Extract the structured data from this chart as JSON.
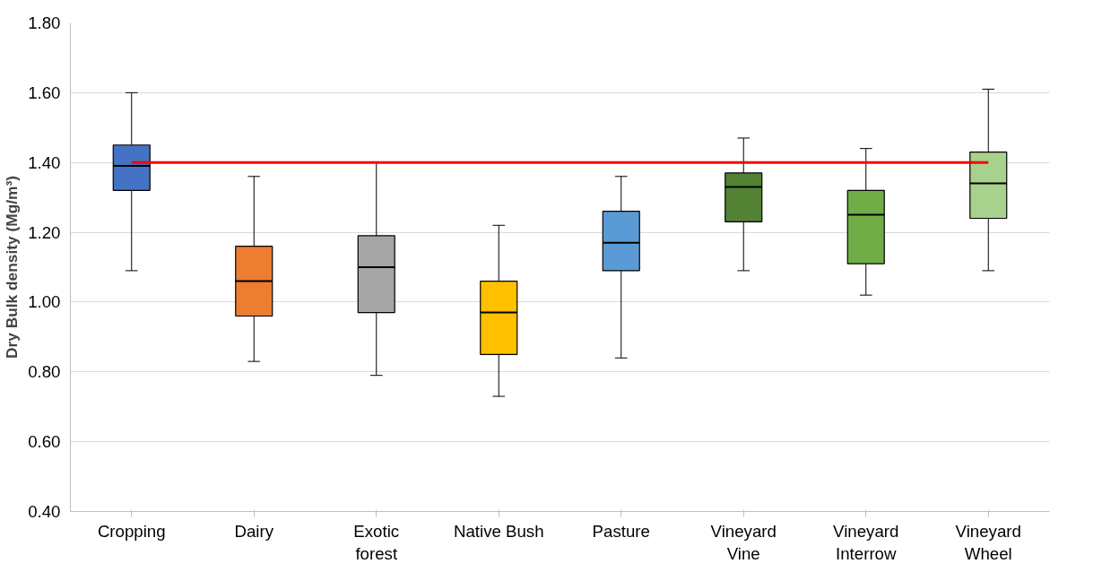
{
  "chart_data": {
    "type": "box",
    "ylabel": "Dry Bulk density (Mg/m³)",
    "categories": [
      "Cropping",
      "Dairy",
      "Exotic forest",
      "Native Bush",
      "Pasture",
      "Vineyard Vine",
      "Vineyard Interrow",
      "Vineyard Wheel"
    ],
    "colors": [
      "#4472c4",
      "#ed7d31",
      "#a5a5a5",
      "#ffc000",
      "#5b9bd5",
      "#548235",
      "#70ad47",
      "#a9d18e"
    ],
    "boxes": [
      {
        "low": 1.09,
        "q1": 1.32,
        "median": 1.39,
        "q3": 1.45,
        "high": 1.6
      },
      {
        "low": 0.83,
        "q1": 0.96,
        "median": 1.06,
        "q3": 1.16,
        "high": 1.36
      },
      {
        "low": 0.79,
        "q1": 0.97,
        "median": 1.1,
        "q3": 1.19,
        "high": 1.4
      },
      {
        "low": 0.73,
        "q1": 0.85,
        "median": 0.97,
        "q3": 1.06,
        "high": 1.22
      },
      {
        "low": 0.84,
        "q1": 1.09,
        "median": 1.17,
        "q3": 1.26,
        "high": 1.36
      },
      {
        "low": 1.09,
        "q1": 1.23,
        "median": 1.33,
        "q3": 1.37,
        "high": 1.47
      },
      {
        "low": 1.02,
        "q1": 1.11,
        "median": 1.25,
        "q3": 1.32,
        "high": 1.44
      },
      {
        "low": 1.09,
        "q1": 1.24,
        "median": 1.34,
        "q3": 1.43,
        "high": 1.61
      }
    ],
    "ylim": [
      0.4,
      1.8
    ],
    "yticks": [
      {
        "value": 0.4,
        "label": "0.40"
      },
      {
        "value": 0.6,
        "label": "0.60"
      },
      {
        "value": 0.8,
        "label": "0.80"
      },
      {
        "value": 1.0,
        "label": "1.00"
      },
      {
        "value": 1.2,
        "label": "1.20"
      },
      {
        "value": 1.4,
        "label": "1.40"
      },
      {
        "value": 1.6,
        "label": "1.60"
      },
      {
        "value": 1.8,
        "label": "1.80"
      }
    ],
    "ref_lines": [
      {
        "axis": "y",
        "value": 1.4,
        "label": null,
        "color": "#ff0000"
      }
    ],
    "grid": "y"
  }
}
